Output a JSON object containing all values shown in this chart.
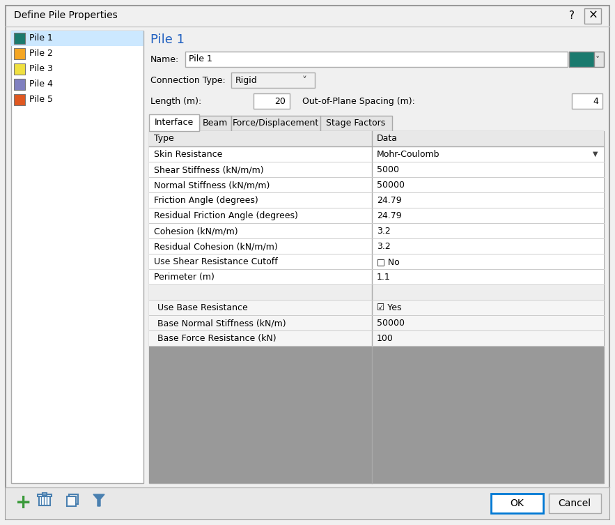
{
  "title": "Define Pile Properties",
  "bg_color": "#f0f0f0",
  "white": "#ffffff",
  "pile_list": [
    "Pile 1",
    "Pile 2",
    "Pile 3",
    "Pile 4",
    "Pile 5"
  ],
  "pile_colors": [
    "#1a7a6e",
    "#f5a623",
    "#f0e040",
    "#8080c0",
    "#e05820"
  ],
  "selected_pile": "Pile 1",
  "selected_color": "#cce8ff",
  "pile1_title": "Pile 1",
  "pile1_title_color": "#2060c0",
  "name_value": "Pile 1",
  "connection_type": "Rigid",
  "length_value": "20",
  "out_of_plane_spacing": "4",
  "tabs": [
    "Interface",
    "Beam",
    "Force/Displacement",
    "Stage Factors"
  ],
  "active_tab": "Interface",
  "table_header": [
    "Type",
    "Data"
  ],
  "table_rows": [
    [
      "Skin Resistance",
      "Mohr-Coulomb"
    ],
    [
      "Shear Stiffness (kN/m/m)",
      "5000"
    ],
    [
      "Normal Stiffness (kN/m/m)",
      "50000"
    ],
    [
      "Friction Angle (degrees)",
      "24.79"
    ],
    [
      "Residual Friction Angle (degrees)",
      "24.79"
    ],
    [
      "Cohesion (kN/m/m)",
      "3.2"
    ],
    [
      "Residual Cohesion (kN/m/m)",
      "3.2"
    ],
    [
      "Use Shear Resistance Cutoff",
      "□ No"
    ],
    [
      "Perimeter (m)",
      "1.1"
    ]
  ],
  "base_rows": [
    [
      "Use Base Resistance",
      "☑ Yes"
    ],
    [
      "Base Normal Stiffness (kN/m)",
      "50000"
    ],
    [
      "Base Force Resistance (kN)",
      "100"
    ]
  ],
  "teal_color": "#1a7a6e",
  "border_color": "#aaaaaa",
  "header_bg": "#e8e8e8",
  "gray_area": "#999999",
  "ok_btn_border": "#0078d4",
  "sep_row_bg": "#eeeeee",
  "base_row_bg": "#f5f5f5"
}
